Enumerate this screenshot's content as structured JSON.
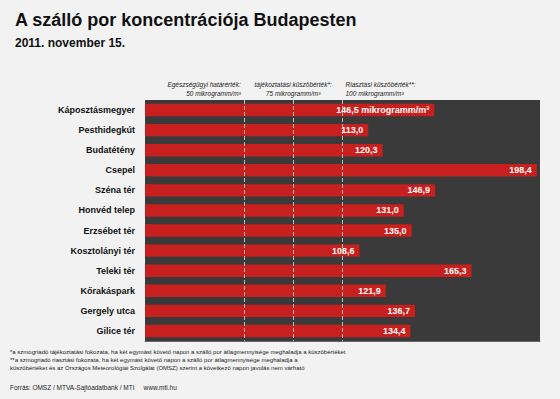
{
  "chart_data": {
    "type": "bar",
    "orientation": "horizontal",
    "title": "A szálló por koncentrációja Budapesten",
    "subtitle": "2011. november 15.",
    "categories": [
      "Káposztásmegyer",
      "Pesthidegkút",
      "Budatétény",
      "Csepel",
      "Széna tér",
      "Honvéd telep",
      "Erzsébet tér",
      "Kosztolányi tér",
      "Teleki tér",
      "Kőrakáspark",
      "Gergely utca",
      "Gilice tér"
    ],
    "values": [
      146.5,
      113.0,
      120.3,
      198.4,
      146.9,
      131.0,
      135.0,
      108.6,
      165.3,
      121.9,
      136.7,
      134.4
    ],
    "value_labels": [
      "146,5 mikrogramm/m³",
      "113,0",
      "120,3",
      "198,4",
      "146,9",
      "131,0",
      "135,0",
      "108,6",
      "165,3",
      "121,9",
      "136,7",
      "134,4"
    ],
    "color": "#c8201e",
    "xlim": [
      0,
      200
    ],
    "tick_labels": false,
    "grid": false,
    "data_labels": true,
    "thresholds": [
      {
        "value": 50,
        "label": [
          "Egészségügyi határérték:",
          "50 mikrogramm/m³"
        ]
      },
      {
        "value": 75,
        "label": [
          "tájékoztatási küszöbérték*:",
          "75 mikrogramm/m³"
        ]
      },
      {
        "value": 100,
        "label": [
          "Riasztási küszöbérték**:",
          "100 mikrogramm/m³"
        ]
      }
    ],
    "footnotes": [
      "*a szmogriadó tájékoztatási fokozata, ha két egymást követő napon a szálló por átlagmennyisége meghaladja a küszöbértéket",
      "**a szmogriadó riasztási fokozata, ha két egymást követő napon a szálló por átlagmennyisége meghaladja a",
      "küszöbértéket és az Országos Meteorológiai Szolgálat (OMSZ) szerint a következő napon javulás nem várható"
    ],
    "source": "Forrás: OMSZ / MTVA-Sajtóadatbank / MTI",
    "url": "www.mti.hu"
  }
}
